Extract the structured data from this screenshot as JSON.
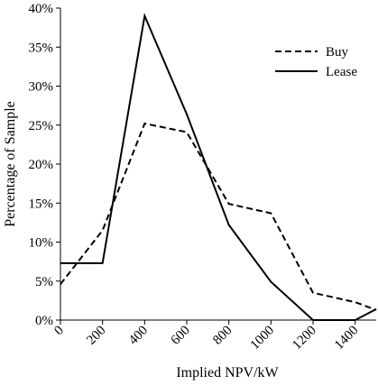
{
  "chart_data": {
    "type": "line",
    "xlabel": "Implied NPV/kW",
    "ylabel": "Percentage of Sample",
    "x": [
      0,
      200,
      400,
      600,
      800,
      1000,
      1200,
      1400,
      1500
    ],
    "xticks": [
      "0",
      "200",
      "400",
      "600",
      "800",
      "1000",
      "1200",
      "1400"
    ],
    "yticks": [
      "0%",
      "5%",
      "10%",
      "15%",
      "20%",
      "25%",
      "30%",
      "35%",
      "40%"
    ],
    "xlim": [
      0,
      1500
    ],
    "ylim": [
      0,
      40
    ],
    "grid": false,
    "legend_position": "top-right",
    "series": [
      {
        "name": "Buy",
        "style": "dashed",
        "values": [
          4.6,
          11.5,
          25.2,
          24.1,
          14.9,
          13.7,
          3.5,
          2.3,
          1.3
        ]
      },
      {
        "name": "Lease",
        "style": "solid",
        "values": [
          7.3,
          7.3,
          39.0,
          26.4,
          12.2,
          4.9,
          0.0,
          0.0,
          1.4
        ]
      }
    ]
  }
}
